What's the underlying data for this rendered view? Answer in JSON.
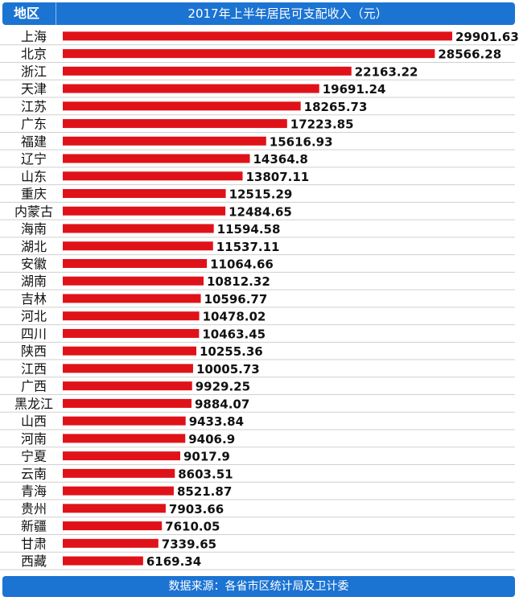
{
  "header": {
    "col_region": "地区",
    "title": "2017年上半年居民可支配收入（元）"
  },
  "footer": {
    "source": "数据来源：各省市区统计局及卫计委"
  },
  "colors": {
    "bar": "#e01219",
    "header_bg": "#1b73d2",
    "grid": "#cfcfcf",
    "text": "#111111"
  },
  "chart_data": {
    "type": "bar",
    "orientation": "horizontal",
    "title": "2017年上半年居民可支配收入（元）",
    "xlabel": "",
    "ylabel": "地区",
    "categories": [
      "上海",
      "北京",
      "浙江",
      "天津",
      "江苏",
      "广东",
      "福建",
      "辽宁",
      "山东",
      "重庆",
      "内蒙古",
      "海南",
      "湖北",
      "安徽",
      "湖南",
      "吉林",
      "河北",
      "四川",
      "陕西",
      "江西",
      "广西",
      "黑龙江",
      "山西",
      "河南",
      "宁夏",
      "云南",
      "青海",
      "贵州",
      "新疆",
      "甘肃",
      "西藏"
    ],
    "labels": [
      "29901.63",
      "28566.28",
      "22163.22",
      "19691.24",
      "18265.73",
      "17223.85",
      "15616.93",
      "14364.8",
      "13807.11",
      "12515.29",
      "12484.65",
      "11594.58",
      "11537.11",
      "11064.66",
      "10812.32",
      "10596.77",
      "10478.02",
      "10463.45",
      "10255.36",
      "10005.73",
      "9929.25",
      "9884.07",
      "9433.84",
      "9406.9",
      "9017.9",
      "8603.51",
      "8521.87",
      "7903.66",
      "7610.05",
      "7339.65",
      "6169.34"
    ],
    "values": [
      29901.63,
      28566.28,
      22163.22,
      19691.24,
      18265.73,
      17223.85,
      15616.93,
      14364.8,
      13807.11,
      12515.29,
      12484.65,
      11594.58,
      11537.11,
      11064.66,
      10812.32,
      10596.77,
      10478.02,
      10463.45,
      10255.36,
      10005.73,
      9929.25,
      9884.07,
      9433.84,
      9406.9,
      9017.9,
      8603.51,
      8521.87,
      7903.66,
      7610.05,
      7339.65,
      6169.34
    ],
    "xlim": [
      0,
      29901.63
    ],
    "grid": "horizontal separators between rows"
  }
}
